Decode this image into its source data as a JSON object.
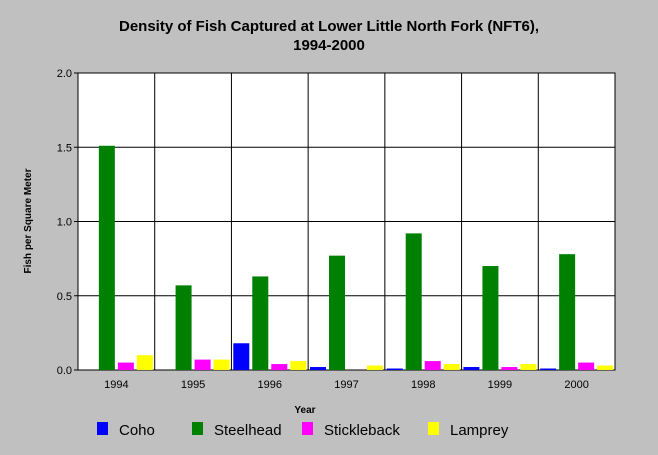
{
  "chart_data": {
    "type": "bar",
    "title_line1": "Density of Fish Captured at Lower Little North Fork (NFT6),",
    "title_line2": "1994-2000",
    "xlabel": "Year",
    "ylabel": "Fish per Square Meter",
    "ylim": [
      0,
      2.0
    ],
    "yticks": [
      "0.0",
      "0.5",
      "1.0",
      "1.5",
      "2.0"
    ],
    "categories": [
      "1994",
      "1995",
      "1996",
      "1997",
      "1998",
      "1999",
      "2000"
    ],
    "grid": true,
    "legend_position": "bottom",
    "series": [
      {
        "name": "Coho",
        "color": "#0000ff",
        "values": [
          0.0,
          0.0,
          0.18,
          0.02,
          0.01,
          0.02,
          0.01
        ]
      },
      {
        "name": "Steelhead",
        "color": "#008000",
        "values": [
          1.51,
          0.57,
          0.63,
          0.77,
          0.92,
          0.7,
          0.78
        ]
      },
      {
        "name": "Stickleback",
        "color": "#ff00ff",
        "values": [
          0.05,
          0.07,
          0.04,
          0.0,
          0.06,
          0.02,
          0.05
        ]
      },
      {
        "name": "Lamprey",
        "color": "#ffff00",
        "values": [
          0.1,
          0.07,
          0.06,
          0.03,
          0.04,
          0.04,
          0.03
        ]
      }
    ]
  }
}
